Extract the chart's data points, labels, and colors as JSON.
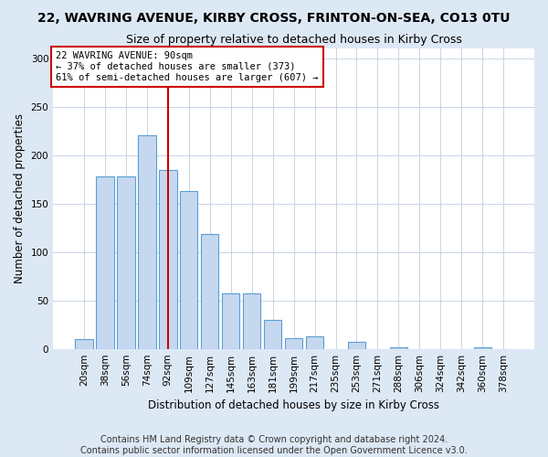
{
  "title": "22, WAVRING AVENUE, KIRBY CROSS, FRINTON-ON-SEA, CO13 0TU",
  "subtitle": "Size of property relative to detached houses in Kirby Cross",
  "xlabel": "Distribution of detached houses by size in Kirby Cross",
  "ylabel": "Number of detached properties",
  "categories": [
    "20sqm",
    "38sqm",
    "56sqm",
    "74sqm",
    "92sqm",
    "109sqm",
    "127sqm",
    "145sqm",
    "163sqm",
    "181sqm",
    "199sqm",
    "217sqm",
    "235sqm",
    "253sqm",
    "271sqm",
    "288sqm",
    "306sqm",
    "324sqm",
    "342sqm",
    "360sqm",
    "378sqm"
  ],
  "values": [
    10,
    178,
    178,
    220,
    185,
    163,
    119,
    57,
    57,
    30,
    11,
    13,
    0,
    7,
    0,
    2,
    0,
    0,
    0,
    2,
    0
  ],
  "bar_color": "#c5d8f0",
  "bar_edge_color": "#5a9fd4",
  "property_line_x": 4,
  "property_line_color": "#cc0000",
  "annotation_text": "22 WAVRING AVENUE: 90sqm\n← 37% of detached houses are smaller (373)\n61% of semi-detached houses are larger (607) →",
  "annotation_box_color": "#ffffff",
  "annotation_box_edge": "#cc0000",
  "ylim": [
    0,
    310
  ],
  "yticks": [
    0,
    50,
    100,
    150,
    200,
    250,
    300
  ],
  "footer": "Contains HM Land Registry data © Crown copyright and database right 2024.\nContains public sector information licensed under the Open Government Licence v3.0.",
  "background_color": "#dde8f5",
  "plot_bg_color": "#ffffff",
  "grid_color": "#c0cfe0",
  "title_fontsize": 10,
  "subtitle_fontsize": 9,
  "label_fontsize": 8.5,
  "tick_fontsize": 7.5,
  "footer_fontsize": 7
}
